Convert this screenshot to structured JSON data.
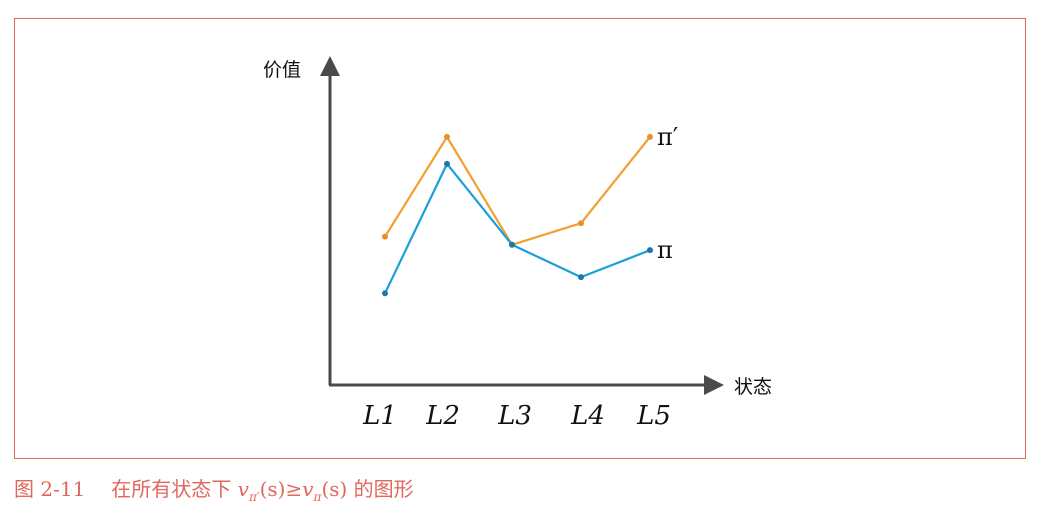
{
  "chart_data": {
    "type": "line",
    "categories": [
      "L1",
      "L2",
      "L3",
      "L4",
      "L5"
    ],
    "series": [
      {
        "name": "π′",
        "values": [
          0.55,
          0.92,
          0.52,
          0.6,
          0.92
        ],
        "color": "#f0a030"
      },
      {
        "name": "π",
        "values": [
          0.34,
          0.82,
          0.52,
          0.4,
          0.5
        ],
        "color": "#1aa0d8"
      }
    ],
    "xlabel": "状态",
    "ylabel": "价值",
    "ylim": [
      0,
      1.22
    ],
    "grid": false,
    "legend": "inline-at-line-end"
  },
  "caption": {
    "number": "图 2-11",
    "text_before": "在所有状态下",
    "v1": "v",
    "sub1": "π′",
    "arg1": "(s)",
    "rel": "≥",
    "v2": "v",
    "sub2": "π",
    "arg2": "(s)",
    "text_after": "的图形"
  },
  "colors": {
    "frame": "#e0675c",
    "axis": "#4a4a4a"
  }
}
